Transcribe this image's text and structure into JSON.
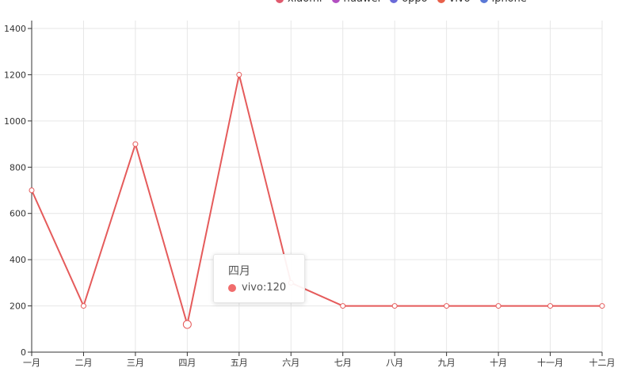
{
  "chart_data": {
    "type": "line",
    "categories": [
      "一月",
      "二月",
      "三月",
      "四月",
      "五月",
      "六月",
      "七月",
      "八月",
      "九月",
      "十月",
      "十一月",
      "十二月"
    ],
    "series": [
      {
        "name": "vivo",
        "color": "#e55b5b",
        "values": [
          700,
          200,
          900,
          120,
          1200,
          300,
          200,
          200,
          200,
          200,
          200,
          200
        ]
      }
    ],
    "ylim": [
      0,
      1400
    ],
    "yticks": [
      0,
      200,
      400,
      600,
      800,
      1000,
      1200,
      1400
    ],
    "grid": true,
    "legend_position": "top-right",
    "legend": [
      {
        "name": "xiaomi",
        "color": "#e05a6e"
      },
      {
        "name": "huawei",
        "color": "#b24fc0"
      },
      {
        "name": "oppo",
        "color": "#6a6ad8"
      },
      {
        "name": "vivo",
        "color": "#e8604a"
      },
      {
        "name": "iphone",
        "color": "#5a78d6"
      }
    ]
  },
  "tooltip": {
    "title": "四月",
    "text": "vivo:120",
    "color": "#f06c6c"
  }
}
